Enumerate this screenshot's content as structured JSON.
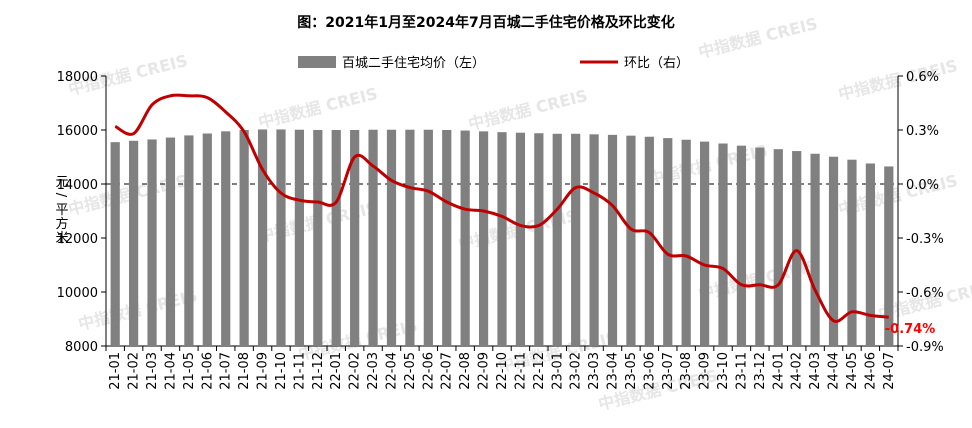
{
  "chart_data": {
    "type": "bar+line",
    "title": "图：2021年1月至2024年7月百城二手住宅价格及环比变化",
    "ylabel_left": "元/平方米",
    "ylim_left": [
      8000,
      18000
    ],
    "yticks_left": [
      8000,
      10000,
      12000,
      14000,
      16000,
      18000
    ],
    "ylim_right": [
      -0.9,
      0.6
    ],
    "yticks_right": [
      "-0.9%",
      "-0.6%",
      "-0.3%",
      "0.0%",
      "0.3%",
      "0.6%"
    ],
    "ytick_values_right": [
      -0.9,
      -0.6,
      -0.3,
      0.0,
      0.3,
      0.6
    ],
    "categories": [
      "21-01",
      "21-02",
      "21-03",
      "21-04",
      "21-05",
      "21-06",
      "21-07",
      "21-08",
      "21-09",
      "21-10",
      "21-11",
      "21-12",
      "22-01",
      "22-02",
      "22-03",
      "22-04",
      "22-05",
      "22-06",
      "22-07",
      "22-08",
      "22-09",
      "22-10",
      "22-11",
      "22-12",
      "23-01",
      "23-02",
      "23-03",
      "23-04",
      "23-05",
      "23-06",
      "23-07",
      "23-08",
      "23-09",
      "23-10",
      "23-11",
      "23-12",
      "24-01",
      "24-02",
      "24-03",
      "24-04",
      "24-05",
      "24-06",
      "24-07"
    ],
    "series": [
      {
        "name": "百城二手住宅均价（左）",
        "type": "bar",
        "axis": "left",
        "color": "#808080",
        "values": [
          15550,
          15600,
          15650,
          15720,
          15800,
          15870,
          15950,
          16000,
          16020,
          16020,
          16010,
          16000,
          16000,
          16000,
          16010,
          16010,
          16010,
          16010,
          16000,
          15980,
          15950,
          15920,
          15900,
          15880,
          15860,
          15860,
          15840,
          15820,
          15790,
          15750,
          15700,
          15640,
          15570,
          15500,
          15420,
          15350,
          15290,
          15220,
          15120,
          15010,
          14900,
          14760,
          14650
        ]
      },
      {
        "name": "环比（右）",
        "type": "line",
        "axis": "right",
        "color": "#c00000",
        "values": [
          0.32,
          0.28,
          0.44,
          0.49,
          0.49,
          0.48,
          0.4,
          0.29,
          0.08,
          -0.05,
          -0.09,
          -0.1,
          -0.1,
          0.15,
          0.1,
          0.02,
          -0.02,
          -0.04,
          -0.1,
          -0.14,
          -0.15,
          -0.18,
          -0.23,
          -0.23,
          -0.14,
          -0.02,
          -0.05,
          -0.12,
          -0.25,
          -0.27,
          -0.39,
          -0.4,
          -0.45,
          -0.47,
          -0.56,
          -0.56,
          -0.56,
          -0.37,
          -0.59,
          -0.76,
          -0.71,
          -0.73,
          -0.74
        ]
      }
    ],
    "annotations": [
      {
        "text": "-0.74%",
        "target": "环比（右）",
        "category": "24-07",
        "color": "#ff0000"
      }
    ],
    "reference_line_right": 0.0,
    "grid": false,
    "legend_position": "top"
  },
  "watermark": {
    "text": "中指数据 CREIS"
  }
}
